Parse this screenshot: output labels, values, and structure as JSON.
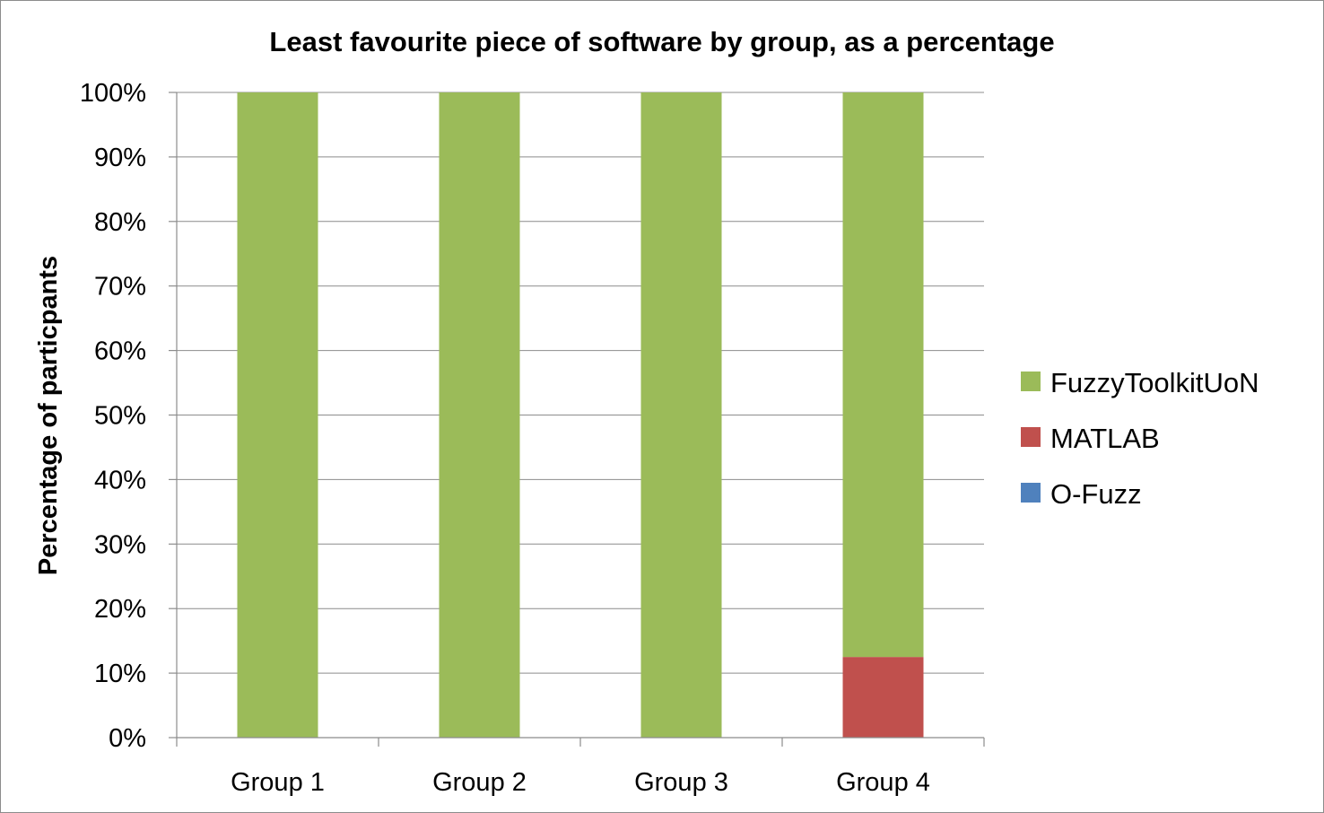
{
  "chart_data": {
    "type": "bar",
    "stacked": true,
    "title": "Least favourite piece of software by group, as a percentage",
    "ylabel": "Percentage of particpants",
    "xlabel": "",
    "ylim": [
      0,
      100
    ],
    "yticks": [
      "0%",
      "10%",
      "20%",
      "30%",
      "40%",
      "50%",
      "60%",
      "70%",
      "80%",
      "90%",
      "100%"
    ],
    "categories": [
      "Group 1",
      "Group 2",
      "Group 3",
      "Group 4"
    ],
    "series": [
      {
        "name": "O-Fuzz",
        "color": "#4f81bd",
        "values": [
          0,
          0,
          0,
          0
        ]
      },
      {
        "name": "MATLAB",
        "color": "#c0504d",
        "values": [
          0,
          0,
          0,
          12.5
        ]
      },
      {
        "name": "FuzzyToolkitUoN",
        "color": "#9bbb59",
        "values": [
          100,
          100,
          100,
          87.5
        ]
      }
    ],
    "legend_order": [
      "FuzzyToolkitUoN",
      "MATLAB",
      "O-Fuzz"
    ],
    "legend_position": "right",
    "grid": true
  }
}
